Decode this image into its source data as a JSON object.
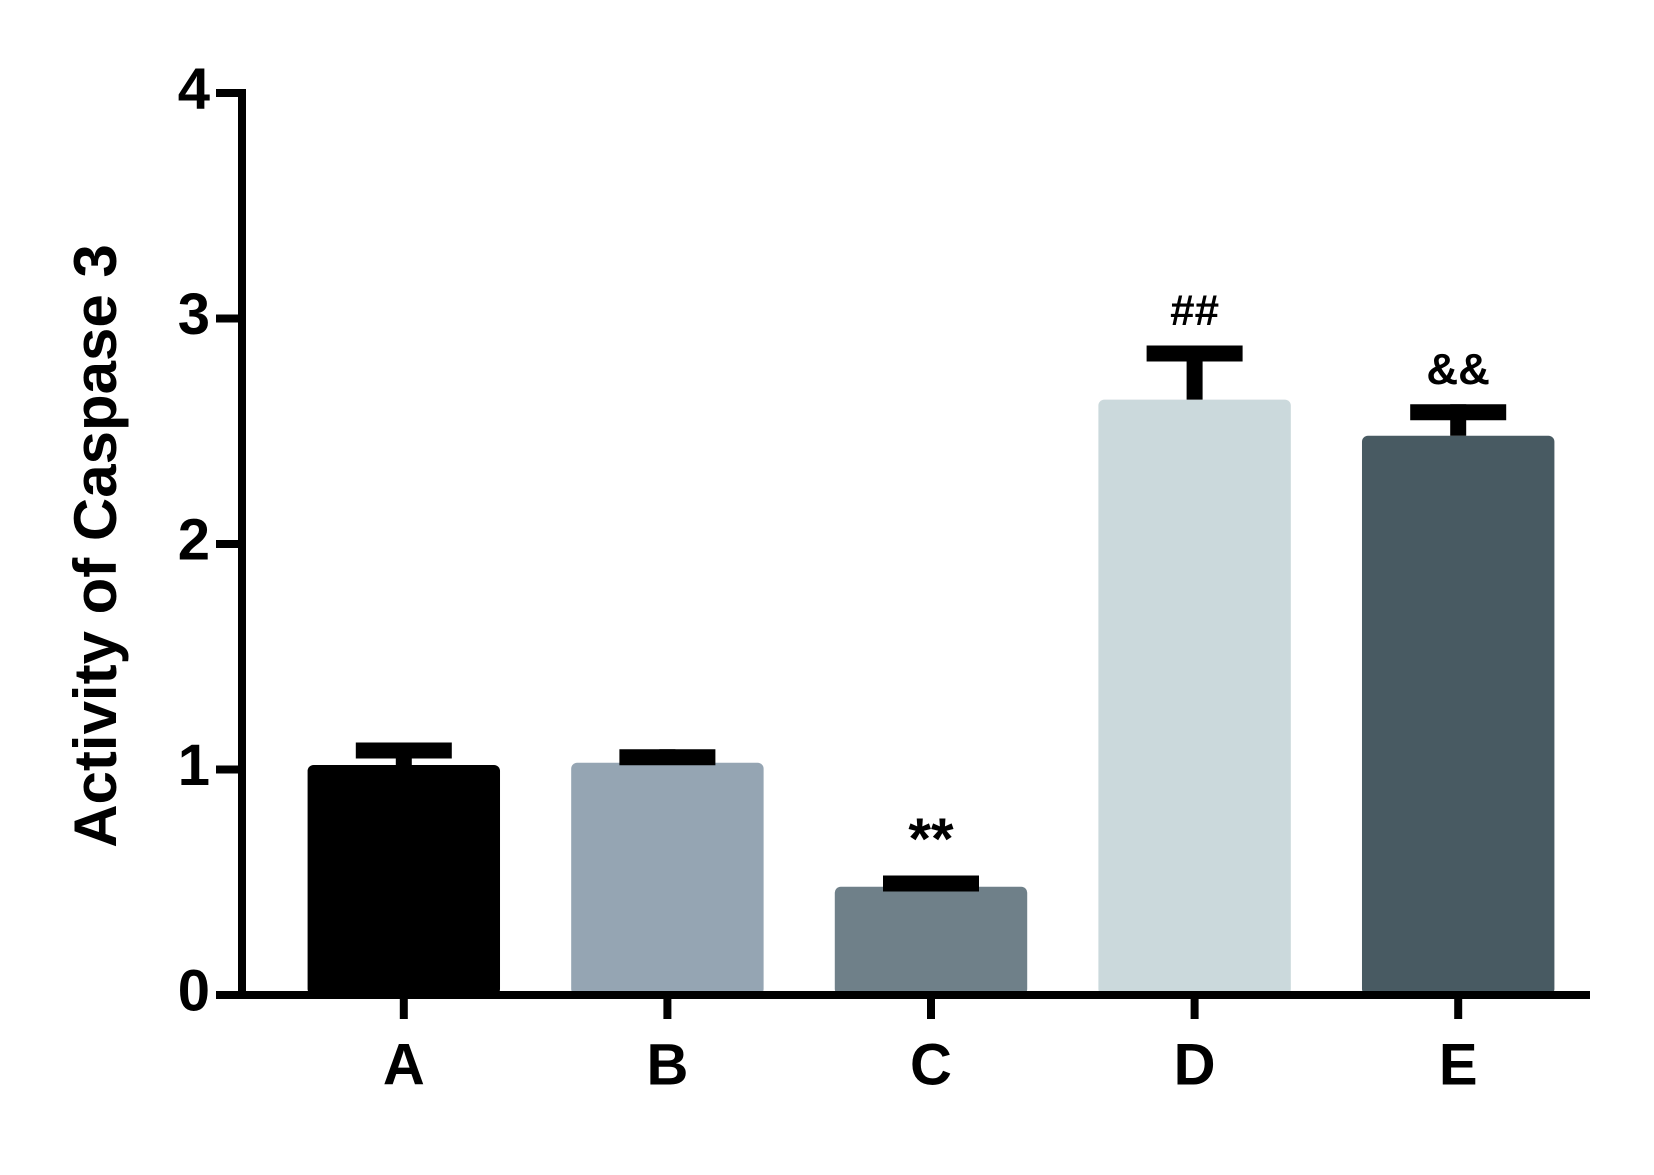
{
  "chart_data": {
    "type": "bar",
    "y_label": "Activity of Caspase 3",
    "categories": [
      "A",
      "B",
      "C",
      "D",
      "E"
    ],
    "values": [
      1.02,
      1.03,
      0.48,
      2.64,
      2.48
    ],
    "errors": [
      0.1,
      0.06,
      0.05,
      0.24,
      0.14
    ],
    "annotations": [
      null,
      null,
      "**",
      "##",
      "&&"
    ],
    "colors": [
      "#000000",
      "#95a5b3",
      "#6f8089",
      "#cbd9dc",
      "#485a62"
    ],
    "ylim": [
      0,
      4
    ],
    "yticks": [
      0,
      1,
      2,
      3,
      4
    ]
  }
}
